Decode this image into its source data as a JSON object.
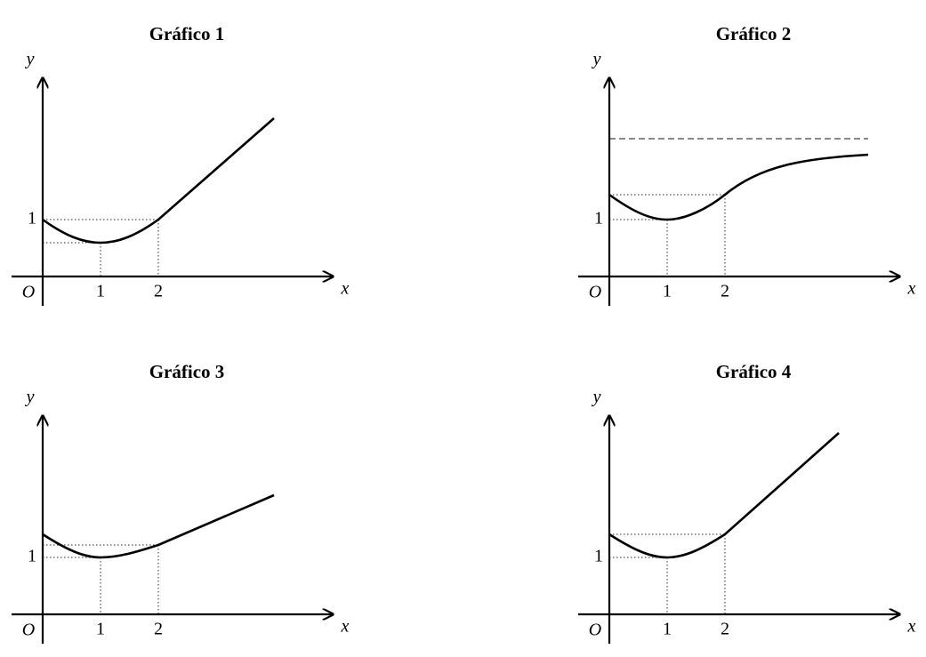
{
  "panels": [
    {
      "title": "Gráfico 1",
      "y_label": "y",
      "x_label": "x",
      "origin_label": "O",
      "x_ticks": [
        "1",
        "2"
      ],
      "y_tick": "1"
    },
    {
      "title": "Gráfico 2",
      "y_label": "y",
      "x_label": "x",
      "origin_label": "O",
      "x_ticks": [
        "1",
        "2"
      ],
      "y_tick": "1"
    },
    {
      "title": "Gráfico 3",
      "y_label": "y",
      "x_label": "x",
      "origin_label": "O",
      "x_ticks": [
        "1",
        "2"
      ],
      "y_tick": "1"
    },
    {
      "title": "Gráfico 4",
      "y_label": "y",
      "x_label": "x",
      "origin_label": "O",
      "x_ticks": [
        "1",
        "2"
      ],
      "y_tick": "1"
    }
  ]
}
